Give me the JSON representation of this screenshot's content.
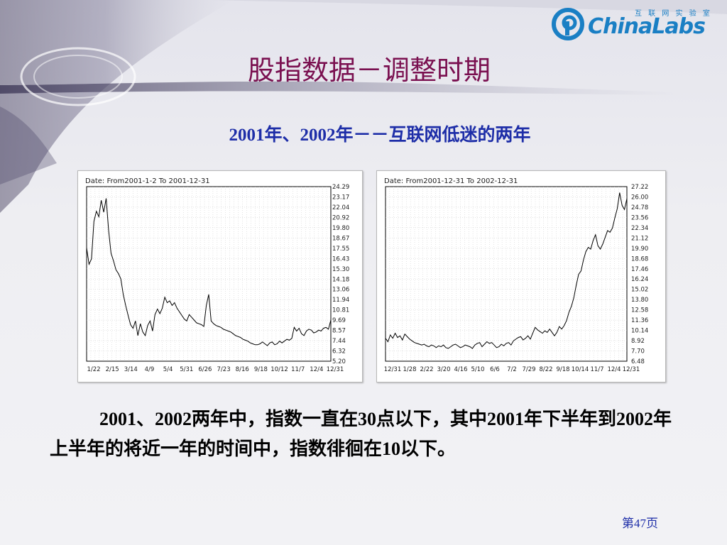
{
  "logo": {
    "name": "ChinaLabs",
    "sub": "互 联 网 实 验 室"
  },
  "title": "股指数据－调整时期",
  "subtitle": "2001年、2002年－－互联网低迷的两年",
  "paragraph": "2001、2002两年中，指数一直在30点以下，其中2001年下半年到2002年上半年的将近一年的时间中，指数徘徊在10以下。",
  "page_number": "第47页",
  "colors": {
    "title": "#7a1050",
    "subtitle": "#1e2ea8",
    "logo": "#1a7fc4",
    "line": "#000000",
    "grid": "#c8c8c8"
  },
  "chart_data": [
    {
      "type": "line",
      "date_label": "Date: From2001-1-2 To 2001-12-31",
      "x_ticks": [
        "1/22",
        "2/15",
        "3/14",
        "4/9",
        "5/4",
        "5/31",
        "6/26",
        "7/23",
        "8/16",
        "9/18",
        "10/12",
        "11/7",
        "12/4",
        "12/31"
      ],
      "y_ticks": [
        "24.29",
        "23.17",
        "22.04",
        "20.92",
        "19.80",
        "18.67",
        "17.55",
        "16.43",
        "15.30",
        "14.18",
        "13.06",
        "11.94",
        "10.81",
        "9.69",
        "8.57",
        "7.44",
        "6.32",
        "5.20"
      ],
      "ylim": [
        5.2,
        24.29
      ],
      "grid": true,
      "x_range": [
        0,
        100
      ],
      "series": [
        {
          "x": [
            0,
            1,
            2,
            3,
            4,
            5,
            6,
            7,
            8,
            9,
            10,
            11,
            12,
            13,
            14,
            15,
            16,
            17,
            18,
            19,
            20,
            21,
            22,
            23,
            24,
            25,
            26,
            27,
            28,
            29,
            30,
            31,
            32,
            33,
            34,
            35,
            36,
            37,
            38,
            39,
            40,
            41,
            42,
            43,
            44,
            45,
            46,
            47,
            48,
            49,
            50,
            51,
            52,
            53,
            54,
            55,
            56,
            57,
            58,
            59,
            60,
            61,
            62,
            63,
            64,
            65,
            66,
            67,
            68,
            69,
            70,
            71,
            72,
            73,
            74,
            75,
            76,
            77,
            78,
            79,
            80,
            81,
            82,
            83,
            84,
            85,
            86,
            87,
            88,
            89,
            90,
            91,
            92,
            93,
            94,
            95,
            96,
            97,
            98,
            99,
            100
          ],
          "values": [
            17.6,
            15.8,
            16.4,
            20.5,
            21.6,
            21.0,
            22.8,
            21.5,
            23.0,
            19.5,
            17.0,
            16.2,
            15.2,
            14.8,
            14.2,
            12.5,
            11.3,
            10.2,
            9.2,
            8.8,
            9.6,
            8.0,
            9.3,
            8.4,
            8.0,
            9.1,
            9.6,
            8.5,
            10.3,
            10.9,
            10.4,
            11.0,
            12.2,
            11.6,
            11.8,
            11.3,
            11.6,
            11.0,
            10.6,
            10.2,
            9.8,
            9.6,
            10.3,
            10.0,
            9.7,
            9.4,
            9.3,
            9.2,
            9.0,
            11.3,
            12.5,
            9.6,
            9.3,
            9.1,
            9.0,
            8.9,
            8.7,
            8.6,
            8.5,
            8.4,
            8.2,
            8.0,
            7.9,
            7.8,
            7.6,
            7.5,
            7.4,
            7.2,
            7.1,
            7.0,
            7.0,
            7.1,
            7.3,
            7.1,
            6.9,
            7.2,
            7.3,
            7.0,
            7.1,
            7.4,
            7.2,
            7.4,
            7.6,
            7.5,
            7.7,
            8.9,
            8.5,
            8.8,
            8.2,
            8.0,
            8.5,
            8.7,
            8.6,
            8.3,
            8.4,
            8.6,
            8.5,
            8.8,
            8.9,
            8.7,
            9.7
          ]
        }
      ]
    },
    {
      "type": "line",
      "date_label": "Date: From2001-12-31 To 2002-12-31",
      "x_ticks": [
        "12/31",
        "1/28",
        "2/22",
        "3/20",
        "4/16",
        "5/10",
        "6/6",
        "7/2",
        "7/29",
        "8/22",
        "9/18",
        "10/14",
        "11/7",
        "12/4",
        "12/31"
      ],
      "y_ticks": [
        "27.22",
        "26.00",
        "24.78",
        "23.56",
        "22.34",
        "21.12",
        "19.90",
        "18.68",
        "17.46",
        "16.24",
        "15.02",
        "13.80",
        "12.58",
        "11.36",
        "10.14",
        "8.92",
        "7.70",
        "6.48"
      ],
      "ylim": [
        6.48,
        27.22
      ],
      "grid": true,
      "x_range": [
        0,
        100
      ],
      "series": [
        {
          "x": [
            0,
            1,
            2,
            3,
            4,
            5,
            6,
            7,
            8,
            9,
            10,
            11,
            12,
            13,
            14,
            15,
            16,
            17,
            18,
            19,
            20,
            21,
            22,
            23,
            24,
            25,
            26,
            27,
            28,
            29,
            30,
            31,
            32,
            33,
            34,
            35,
            36,
            37,
            38,
            39,
            40,
            41,
            42,
            43,
            44,
            45,
            46,
            47,
            48,
            49,
            50,
            51,
            52,
            53,
            54,
            55,
            56,
            57,
            58,
            59,
            60,
            61,
            62,
            63,
            64,
            65,
            66,
            67,
            68,
            69,
            70,
            71,
            72,
            73,
            74,
            75,
            76,
            77,
            78,
            79,
            80,
            81,
            82,
            83,
            84,
            85,
            86,
            87,
            88,
            89,
            90,
            91,
            92,
            93,
            94,
            95,
            96,
            97,
            98,
            99,
            100
          ],
          "values": [
            9.2,
            8.8,
            9.6,
            9.2,
            9.8,
            9.3,
            9.5,
            9.0,
            9.7,
            9.4,
            9.1,
            8.9,
            8.7,
            8.6,
            8.5,
            8.4,
            8.5,
            8.3,
            8.2,
            8.4,
            8.3,
            8.1,
            8.3,
            8.2,
            8.4,
            8.1,
            8.0,
            8.2,
            8.4,
            8.5,
            8.3,
            8.1,
            8.2,
            8.4,
            8.3,
            8.2,
            8.0,
            8.4,
            8.6,
            8.7,
            8.2,
            8.5,
            8.8,
            8.6,
            8.7,
            8.4,
            8.1,
            8.2,
            8.5,
            8.3,
            8.6,
            8.7,
            8.4,
            8.9,
            9.1,
            9.3,
            9.4,
            9.0,
            9.2,
            9.5,
            9.1,
            9.8,
            10.5,
            10.2,
            10.0,
            9.8,
            10.1,
            9.9,
            10.3,
            9.9,
            9.5,
            9.9,
            10.6,
            10.3,
            10.7,
            11.3,
            12.3,
            13.0,
            14.0,
            15.5,
            16.8,
            17.2,
            18.5,
            19.5,
            20.0,
            19.8,
            20.8,
            21.5,
            20.2,
            19.8,
            20.4,
            21.2,
            22.0,
            21.8,
            22.3,
            23.5,
            24.6,
            26.5,
            25.0,
            24.5,
            25.8
          ]
        }
      ]
    }
  ]
}
